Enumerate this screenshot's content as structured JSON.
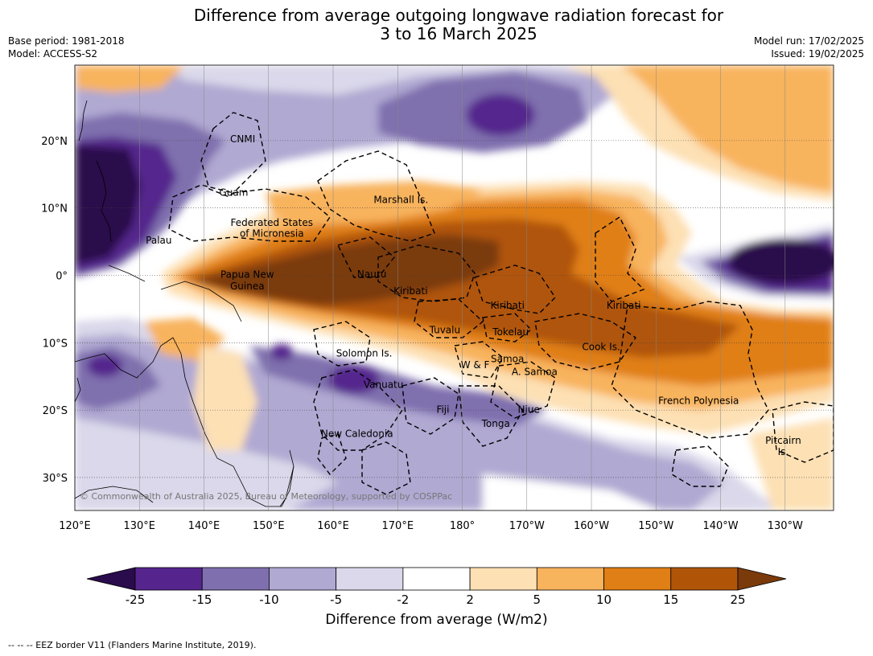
{
  "header": {
    "title_line1": "Difference from average outgoing longwave radiation forecast for",
    "title_line2": "3 to 16 March 2025",
    "base_period": "Base period: 1981-2018",
    "model": "Model: ACCESS-S2",
    "model_run": "Model run: 17/02/2025",
    "issued": "Issued: 19/02/2025"
  },
  "map": {
    "lon_ticks": [
      "120°E",
      "130°E",
      "140°E",
      "150°E",
      "160°E",
      "170°E",
      "180°",
      "170°W",
      "160°W",
      "150°W",
      "140°W",
      "130°W"
    ],
    "lat_ticks": [
      "20°N",
      "10°N",
      "0°",
      "10°S",
      "20°S",
      "30°S"
    ],
    "copyright": "© Commonwealth of Australia 2025, Bureau of Meteorology, supported by COSPPac",
    "regions": [
      {
        "name": "CNMI",
        "lon": 146,
        "lat": 20.2
      },
      {
        "name": "Guam",
        "lon": 144.6,
        "lat": 12.3
      },
      {
        "name": "Marshall Is.",
        "lon": 170.5,
        "lat": 11.2
      },
      {
        "name": "Federated States",
        "lon": 150.5,
        "lat": 7.8
      },
      {
        "name": "of Micronesia",
        "lon": 150.5,
        "lat": 6.2
      },
      {
        "name": "Palau",
        "lon": 133.0,
        "lat": 5.2
      },
      {
        "name": "Papua New",
        "lon": 146.7,
        "lat": 0.1
      },
      {
        "name": "Guinea",
        "lon": 146.7,
        "lat": -1.6
      },
      {
        "name": "Nauru",
        "lon": 166.0,
        "lat": 0.2
      },
      {
        "name": "Kiribati",
        "lon": 172.0,
        "lat": -2.3
      },
      {
        "name": "Kiribati",
        "lon": -173.0,
        "lat": -4.5
      },
      {
        "name": "Kiribati",
        "lon": -155.0,
        "lat": -4.5
      },
      {
        "name": "Tuvalu",
        "lon": 177.3,
        "lat": -8.1
      },
      {
        "name": "Tokelau",
        "lon": -172.5,
        "lat": -8.4
      },
      {
        "name": "Cook Is.",
        "lon": -158.5,
        "lat": -10.6
      },
      {
        "name": "Solomon Is.",
        "lon": 164.8,
        "lat": -11.6
      },
      {
        "name": "Samoa",
        "lon": -173.0,
        "lat": -12.4
      },
      {
        "name": "W & F",
        "lon": -178.0,
        "lat": -13.3
      },
      {
        "name": "A. Samoa",
        "lon": -168.8,
        "lat": -14.3
      },
      {
        "name": "Vanuatu",
        "lon": 167.8,
        "lat": -16.2
      },
      {
        "name": "French Polynesia",
        "lon": -143.4,
        "lat": -18.6
      },
      {
        "name": "Fiji",
        "lon": 177.0,
        "lat": -19.9
      },
      {
        "name": "Niue",
        "lon": -169.7,
        "lat": -19.9
      },
      {
        "name": "Tonga",
        "lon": -174.8,
        "lat": -22.0
      },
      {
        "name": "New Caledonia",
        "lon": 163.7,
        "lat": -23.5
      },
      {
        "name": "Pitcairn",
        "lon": -130.3,
        "lat": -24.5
      },
      {
        "name": "Is.",
        "lon": -130.3,
        "lat": -26.2
      }
    ]
  },
  "colorbar": {
    "ticks": [
      "-25",
      "-15",
      "-10",
      "-5",
      "-2",
      "2",
      "5",
      "10",
      "15",
      "25"
    ],
    "colors": [
      "#2a0b4c",
      "#55258d",
      "#7f6fae",
      "#b0a9d2",
      "#dad8ea",
      "#ffffff",
      "#fde0b4",
      "#f8b35d",
      "#e07f15",
      "#b05508",
      "#7a3a0a"
    ],
    "label": "Difference from average (W/m2)"
  },
  "footnote": "--  --  -- EEZ border V11 (Flanders Marine Institute, 2019)."
}
